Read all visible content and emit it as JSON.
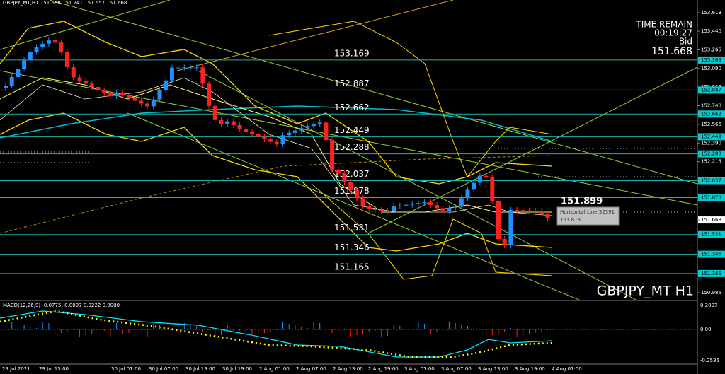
{
  "header": {
    "symbol_info": "GBPJPY_MT,H1  151.688 151.741 151.657 151.668"
  },
  "info": {
    "time_remain_label": "TIME REMAIN",
    "time_remain": "00:19:27",
    "bid_label": "Bid",
    "bid": "151.668"
  },
  "watermark": "GBPJPY_MT H1",
  "price_axis": {
    "labels": [
      "153.613",
      "153.440",
      "153.265",
      "153.169",
      "153.090",
      "152.915",
      "152.887",
      "152.740",
      "152.662",
      "152.565",
      "152.449",
      "152.390",
      "152.288",
      "152.215",
      "152.037",
      "151.878",
      "151.668",
      "151.531",
      "151.346",
      "151.165",
      "150.985"
    ]
  },
  "levels": [
    "153.169",
    "152.887",
    "152.662",
    "152.449",
    "152.288",
    "152.037",
    "151.878",
    "151.531",
    "151.346",
    "151.165"
  ],
  "marker": {
    "price": "151.899"
  },
  "tooltip": {
    "name": "Horizontal Line 32391",
    "value": "151.878"
  },
  "macd": {
    "label": "MACD(12,26,9) -0.0775 -0.0097 0.0222 0.0000",
    "axis_labels": [
      "0.2097",
      "0.00",
      "-0.2535"
    ]
  },
  "time_axis": {
    "labels": [
      "29 Jul 2021",
      "29 Jul 13:00",
      "30 Jul 01:00",
      "30 Jul 07:00",
      "30 Jul 13:00",
      "30 Jul 19:00",
      "2 Aug 01:00",
      "2 Aug 07:00",
      "2 Aug 13:00",
      "2 Aug 19:00",
      "3 Aug 01:00",
      "3 Aug 07:00",
      "3 Aug 13:00",
      "3 Aug 19:00",
      "4 Aug 01:00"
    ]
  }
}
